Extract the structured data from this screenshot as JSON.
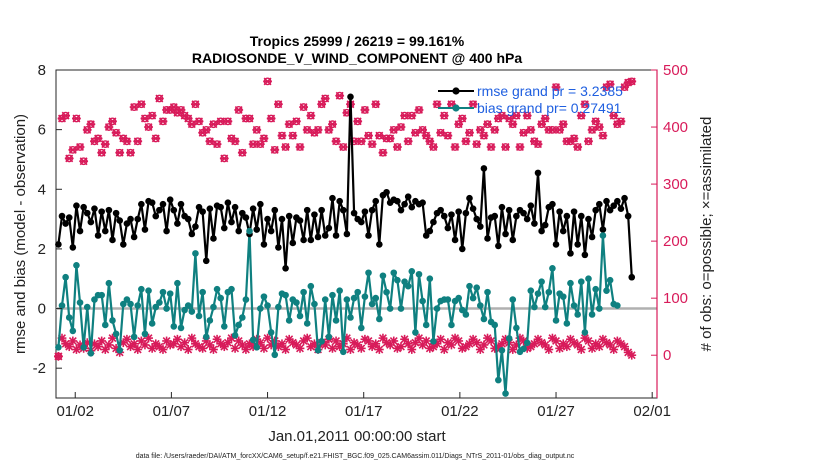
{
  "colors": {
    "rmse": "#000000",
    "bias": "#0f8080",
    "obs": "#d81b5a",
    "legend_text": "#1f5fe0",
    "zero_line": "#b0b0b0"
  },
  "chart_data": {
    "type": "line",
    "title": "Tropics 25999 / 26219 = 99.161%",
    "subtitle": "RADIOSONDE_V_WIND_COMPONENT @ 400 hPa",
    "xlabel": "Jan.01,2011 00:00:00 start",
    "ylabel": "rmse and bias (model - observation)",
    "ylabel_right": "# of obs: o=possible; ×=assimilated",
    "x_tick_labels": [
      "01/02",
      "01/07",
      "01/12",
      "01/17",
      "01/22",
      "01/27",
      "02/01"
    ],
    "x_tick_values": [
      1,
      6,
      11,
      16,
      21,
      26,
      31
    ],
    "xlim": [
      0,
      31.25
    ],
    "ylim": [
      -3,
      8
    ],
    "y_ticks": [
      -2,
      0,
      2,
      4,
      6,
      8
    ],
    "ylim_right": [
      -75,
      500
    ],
    "y_ticks_right": [
      0,
      100,
      200,
      300,
      400,
      500
    ],
    "footnote": "data file: /Users/raeder/DAI/ATM_forcXX/CAM6_setup/f.e21.FHIST_BGC.f09_025.CAM6assim.011/Diags_NTrS_2011-01/obs_diag_output.nc",
    "series": [
      {
        "name": "rmse grand pr = 3.2385",
        "values": [
          2.15,
          3.1,
          2.85,
          3.05,
          2.05,
          3.45,
          2.6,
          3.4,
          3.2,
          2.9,
          3.35,
          2.45,
          3.25,
          2.6,
          3.3,
          2.3,
          3.2,
          2.95,
          2.15,
          2.85,
          3.0,
          2.4,
          3.0,
          3.5,
          2.65,
          3.6,
          3.55,
          3.1,
          3.3,
          3.5,
          2.6,
          3.65,
          3.3,
          2.85,
          3.5,
          3.1,
          3.0,
          2.5,
          2.75,
          3.4,
          3.25,
          1.6,
          3.35,
          2.35,
          3.45,
          3.4,
          2.7,
          3.55,
          2.9,
          3.4,
          2.6,
          3.2,
          3.05,
          2.5,
          3.35,
          2.65,
          3.5,
          2.15,
          3.0,
          2.6,
          3.3,
          2.05,
          3.0,
          1.35,
          3.1,
          2.2,
          3.05,
          2.95,
          2.3,
          3.3,
          2.3,
          3.15,
          2.4,
          3.3,
          2.45,
          2.7,
          3.7,
          2.45,
          3.6,
          3.3,
          2.5,
          7.1,
          3.2,
          3.0,
          2.9,
          3.25,
          2.45,
          3.3,
          3.6,
          2.15,
          3.8,
          3.9,
          3.55,
          3.65,
          3.6,
          3.3,
          3.5,
          3.75,
          3.4,
          3.6,
          3.5,
          3.55,
          2.45,
          2.6,
          2.9,
          3.2,
          3.3,
          3.1,
          2.7,
          3.15,
          2.3,
          3.25,
          2.0,
          3.2,
          3.7,
          3.35,
          3.0,
          2.75,
          4.7,
          2.35,
          3.05,
          3.1,
          2.1,
          3.4,
          2.5,
          3.3,
          2.3,
          3.1,
          3.3,
          3.2,
          3.0,
          3.45,
          2.85,
          4.55,
          2.6,
          2.8,
          3.4,
          3.5,
          2.15,
          3.25,
          2.6,
          3.1,
          1.85,
          3.25,
          2.15,
          3.1,
          1.8,
          3.0,
          2.4,
          3.3,
          3.5,
          2.65,
          3.6,
          3.3,
          3.45,
          3.6,
          3.35,
          3.7,
          3.1,
          1.05
        ]
      },
      {
        "name": "bias grand pr= 0.27491",
        "values": [
          -1.3,
          0.1,
          1.05,
          -0.3,
          -0.75,
          1.45,
          0.2,
          -1.3,
          0.05,
          -1.5,
          0.3,
          0.45,
          0.45,
          -0.55,
          0.85,
          -0.4,
          -0.85,
          -1.4,
          0.15,
          0.3,
          0.15,
          -0.95,
          0.1,
          0.65,
          -0.85,
          0.6,
          -0.5,
          0.05,
          0.2,
          0.55,
          0.0,
          0.5,
          -0.6,
          0.85,
          -0.65,
          -0.05,
          0.1,
          -0.1,
          1.85,
          -0.25,
          0.55,
          -0.95,
          -0.4,
          0.05,
          0.65,
          0.35,
          -0.6,
          0.55,
          0.65,
          -0.9,
          -0.55,
          -0.3,
          0.3,
          2.6,
          -1.05,
          -1.3,
          0.0,
          0.4,
          0.1,
          -0.8,
          -1.55,
          0.05,
          0.5,
          0.45,
          -0.4,
          0.3,
          0.2,
          -0.25,
          0.55,
          -0.5,
          0.75,
          0.15,
          -1.4,
          -1.1,
          0.3,
          -0.95,
          0.45,
          -0.4,
          0.6,
          -1.45,
          0.3,
          -0.3,
          0.35,
          0.55,
          -0.65,
          0.4,
          1.2,
          0.15,
          0.35,
          -0.35,
          1.1,
          0.55,
          0.0,
          1.2,
          0.95,
          0.0,
          0.9,
          0.75,
          1.25,
          -0.8,
          1.15,
          0.25,
          -0.55,
          1.0,
          -1.1,
          0.0,
          0.25,
          0.3,
          0.3,
          -0.55,
          0.25,
          0.35,
          -0.05,
          -0.2,
          0.75,
          0.35,
          0.7,
          0.1,
          -0.35,
          0.55,
          -0.45,
          -0.55,
          -2.4,
          -1.4,
          -2.85,
          -1.0,
          0.3,
          -0.65,
          -1.45,
          -1.35,
          -1.15,
          0.6,
          0.05,
          0.5,
          0.9,
          0.05,
          0.55,
          1.35,
          -0.4,
          0.5,
          0.4,
          -0.5,
          0.85,
          0.1,
          -0.2,
          0.9,
          -0.8,
          1.0,
          -0.2,
          0.65,
          0.0,
          2.45,
          0.6,
          0.95,
          0.15,
          0.1
        ]
      },
      {
        "name": "obs possible",
        "marker": "o",
        "axis": "right",
        "values": [
          -2,
          415,
          420,
          345,
          360,
          415,
          365,
          340,
          395,
          405,
          375,
          380,
          355,
          370,
          400,
          410,
          390,
          355,
          380,
          375,
          355,
          435,
          375,
          440,
          415,
          400,
          420,
          380,
          450,
          410,
          430,
          430,
          435,
          425,
          430,
          420,
          415,
          405,
          440,
          410,
          390,
          395,
          375,
          405,
          370,
          410,
          345,
          410,
          380,
          375,
          430,
          355,
          415,
          415,
          370,
          395,
          370,
          380,
          480,
          415,
          360,
          440,
          385,
          365,
          405,
          385,
          410,
          365,
          435,
          395,
          420,
          390,
          395,
          440,
          450,
          395,
          405,
          375,
          455,
          365,
          425,
          440,
          375,
          410,
          375,
          430,
          385,
          370,
          440,
          385,
          355,
          380,
          380,
          395,
          365,
          400,
          420,
          375,
          420,
          390,
          430,
          395,
          385,
          375,
          365,
          440,
          390,
          420,
          385,
          440,
          365,
          405,
          415,
          375,
          390,
          440,
          370,
          395,
          385,
          405,
          365,
          395,
          415,
          420,
          365,
          415,
          405,
          420,
          365,
          390,
          420,
          395,
          375,
          370,
          405,
          415,
          395,
          395,
          470,
          395,
          405,
          375,
          375,
          380,
          365,
          420,
          440,
          375,
          395,
          410,
          400,
          385,
          470,
          475,
          420,
          405,
          410,
          470,
          478,
          480
        ]
      },
      {
        "name": "obs assimilated",
        "marker": "x",
        "axis": "right",
        "values": [
          -2,
          30,
          20,
          15,
          25,
          10,
          18,
          12,
          22,
          8,
          20,
          15,
          25,
          10,
          18,
          30,
          12,
          5,
          22,
          28,
          15,
          20,
          10,
          25,
          18,
          30,
          12,
          20,
          15,
          10,
          25,
          18,
          20,
          28,
          15,
          22,
          10,
          30,
          20,
          15,
          12,
          25,
          18,
          10,
          28,
          20,
          15,
          22,
          30,
          12,
          25,
          18,
          10,
          20,
          15,
          28,
          22,
          12,
          30,
          18,
          25,
          15,
          20,
          10,
          28,
          22,
          18,
          12,
          25,
          30,
          15,
          20,
          10,
          22,
          18,
          28,
          12,
          25,
          15,
          20,
          30,
          10,
          22,
          18,
          12,
          28,
          25,
          15,
          20,
          10,
          30,
          22,
          18,
          25,
          12,
          15,
          28,
          20,
          10,
          22,
          30,
          18,
          25,
          12,
          15,
          20,
          28,
          10,
          22,
          18,
          30,
          25,
          12,
          15,
          20,
          28,
          22,
          10,
          18,
          30,
          25,
          12,
          15,
          20,
          28,
          22,
          10,
          18,
          30,
          25,
          12,
          15,
          20,
          28,
          22,
          18,
          10,
          30,
          25,
          12,
          20,
          15,
          28,
          22,
          18,
          10,
          30,
          25,
          12,
          20,
          15,
          28,
          22,
          18,
          10,
          25,
          20,
          15,
          5,
          0
        ]
      }
    ]
  }
}
